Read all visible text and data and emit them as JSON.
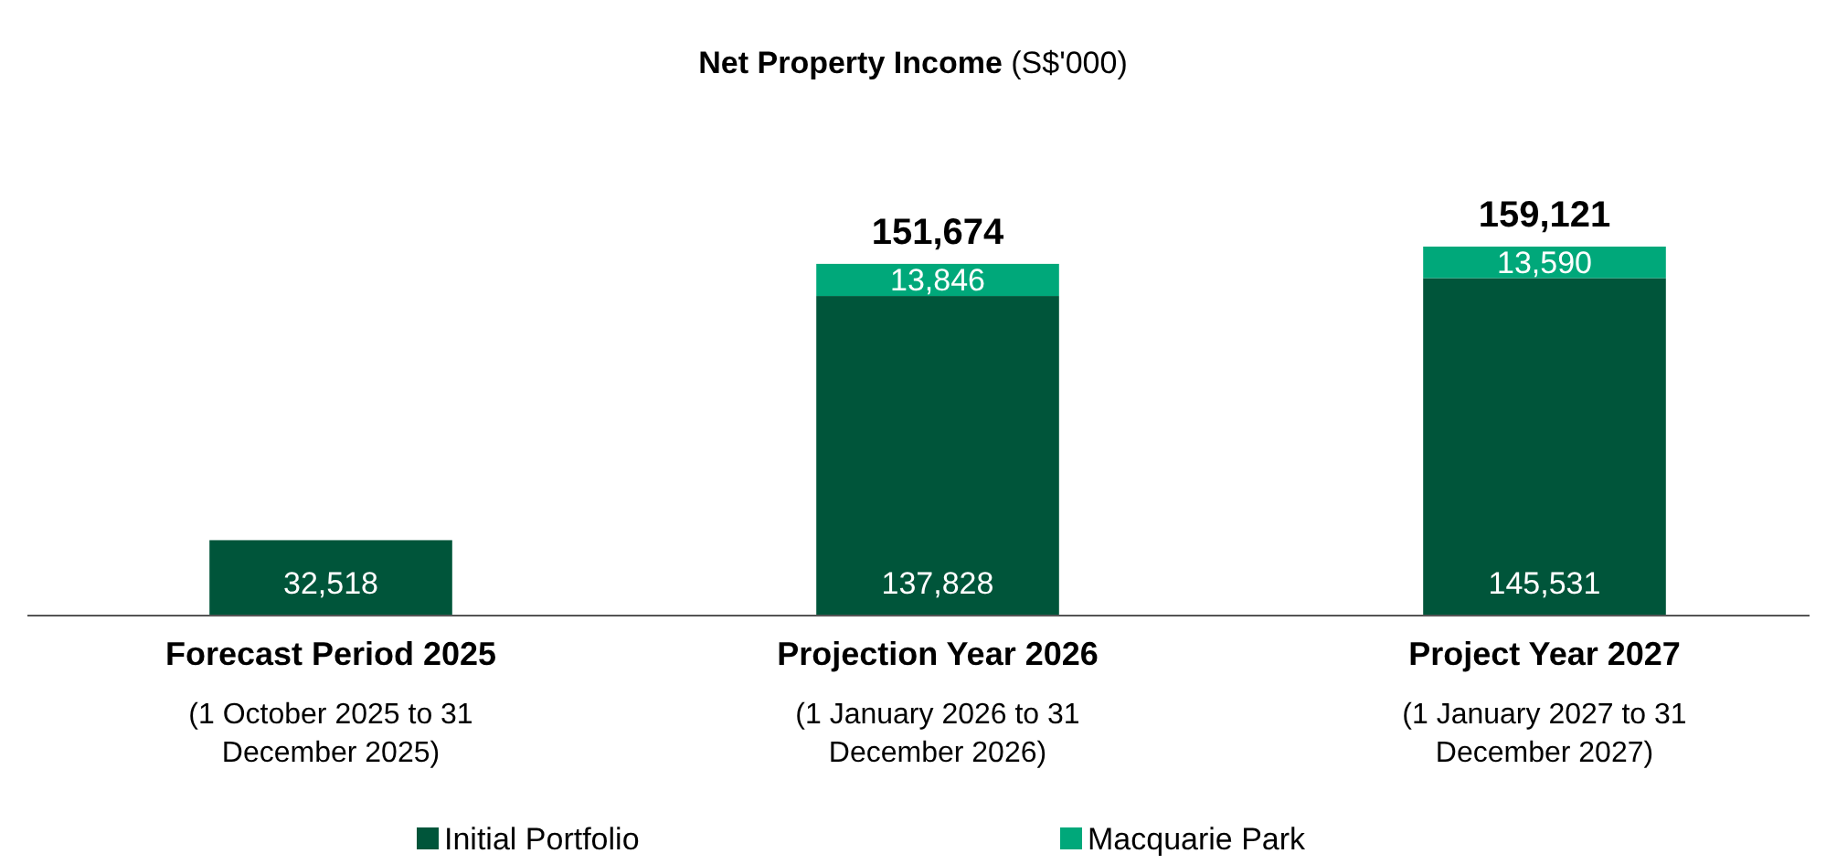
{
  "chart_data": {
    "type": "bar",
    "title": "Net Property Income (S$'000)",
    "stacked": true,
    "categories": [
      "Forecast Period 2025",
      "Projection Year 2026",
      "Project Year 2027"
    ],
    "series": [
      {
        "name": "Initial Portfolio",
        "color": "#00553a",
        "values": [
          32518,
          137828,
          145531
        ],
        "value_labels": [
          "32,518",
          "137,828",
          "145,531"
        ]
      },
      {
        "name": "Macquarie Park",
        "color": "#00a87a",
        "values": [
          null,
          13846,
          13590
        ],
        "value_labels": [
          null,
          "13,846",
          "13,590"
        ]
      }
    ],
    "totals": [
      null,
      "151,674",
      "159,121"
    ],
    "annotations": [
      "(1 October 2025 to 31\nDecember 2025)",
      "(1 January 2026 to 31\nDecember 2026)",
      "(1 January 2027 to 31\nDecember 2027)"
    ],
    "legend": "bottom"
  }
}
